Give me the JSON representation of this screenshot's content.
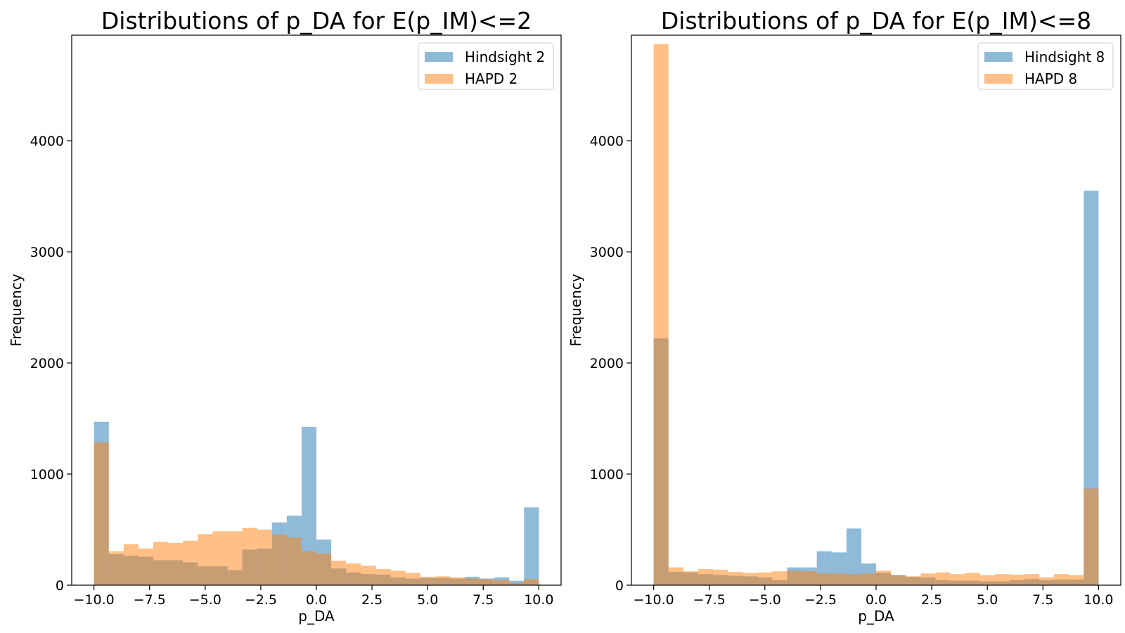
{
  "chart_data": [
    {
      "type": "bar",
      "title": "Distributions of p_DA for E(p_IM)<=2",
      "xlabel": "p_DA",
      "ylabel": "Frequency",
      "xlim": [
        -11.0,
        11.0
      ],
      "ylim": [
        0,
        4950
      ],
      "bin_width": 0.6667,
      "x_start": -10.0,
      "xticks": [
        -10,
        -7.5,
        -5,
        -2.5,
        0,
        2.5,
        5,
        7.5,
        10
      ],
      "xtick_labels": [
        "−10.0",
        "−7.5",
        "−5.0",
        "−2.5",
        "0.0",
        "2.5",
        "5.0",
        "7.5",
        "10.0"
      ],
      "yticks": [
        0,
        1000,
        2000,
        3000,
        4000
      ],
      "ytick_labels": [
        "0",
        "1000",
        "2000",
        "3000",
        "4000"
      ],
      "legend_position": "top-right",
      "grid": false,
      "series": [
        {
          "name": "Hindsight 2",
          "color": "#1f77b4",
          "values": [
            1470,
            280,
            265,
            255,
            225,
            225,
            205,
            170,
            170,
            135,
            320,
            330,
            565,
            625,
            1425,
            410,
            150,
            115,
            100,
            95,
            70,
            60,
            65,
            65,
            60,
            75,
            60,
            70,
            40,
            700
          ]
        },
        {
          "name": "HAPD 2",
          "color": "#ff7f0e",
          "values": [
            1285,
            305,
            370,
            330,
            390,
            380,
            400,
            460,
            485,
            485,
            515,
            500,
            455,
            430,
            305,
            285,
            220,
            195,
            175,
            145,
            130,
            110,
            75,
            80,
            70,
            60,
            55,
            45,
            20,
            55
          ]
        }
      ]
    },
    {
      "type": "bar",
      "title": "Distributions of p_DA for E(p_IM)<=8",
      "xlabel": "p_DA",
      "ylabel": "Frequency",
      "xlim": [
        -11.0,
        11.0
      ],
      "ylim": [
        0,
        4950
      ],
      "bin_width": 0.6667,
      "x_start": -10.0,
      "xticks": [
        -10,
        -7.5,
        -5,
        -2.5,
        0,
        2.5,
        5,
        7.5,
        10
      ],
      "xtick_labels": [
        "−10.0",
        "−7.5",
        "−5.0",
        "−2.5",
        "0.0",
        "2.5",
        "5.0",
        "7.5",
        "10.0"
      ],
      "yticks": [
        0,
        1000,
        2000,
        3000,
        4000
      ],
      "ytick_labels": [
        "0",
        "1000",
        "2000",
        "3000",
        "4000"
      ],
      "legend_position": "top-right",
      "grid": false,
      "series": [
        {
          "name": "Hindsight 8",
          "color": "#1f77b4",
          "values": [
            2220,
            120,
            115,
            100,
            90,
            85,
            80,
            70,
            45,
            160,
            160,
            305,
            295,
            510,
            195,
            110,
            90,
            75,
            70,
            45,
            40,
            40,
            35,
            35,
            45,
            55,
            45,
            50,
            50,
            3550
          ]
        },
        {
          "name": "HAPD 8",
          "color": "#ff7f0e",
          "values": [
            4870,
            160,
            125,
            145,
            140,
            120,
            110,
            115,
            125,
            130,
            125,
            105,
            105,
            100,
            105,
            130,
            90,
            80,
            105,
            115,
            100,
            110,
            90,
            100,
            95,
            100,
            70,
            100,
            90,
            870
          ]
        }
      ]
    }
  ]
}
